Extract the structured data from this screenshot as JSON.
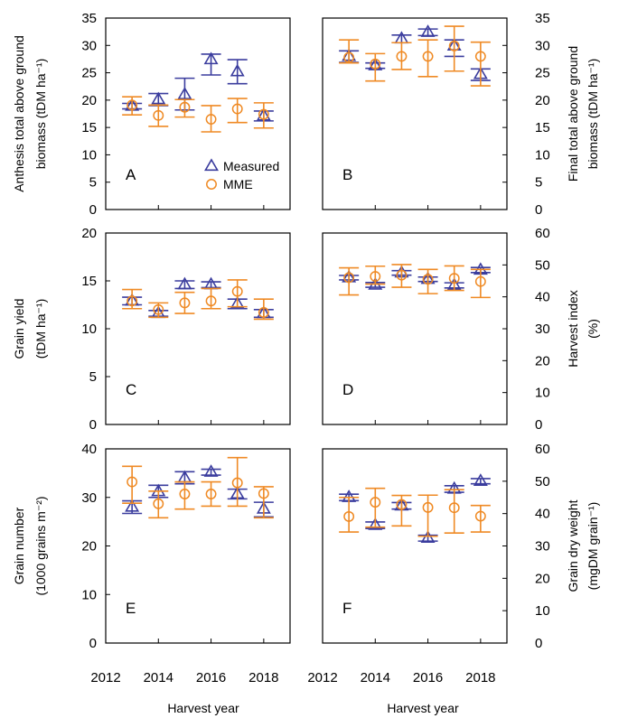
{
  "colors": {
    "measured": "#3b3d9e",
    "mme": "#ef8a24",
    "frame": "#000000"
  },
  "legend": {
    "measured": "Measured",
    "mme": "MME"
  },
  "x_axis": {
    "label": "Harvest year",
    "ticks": [
      2012,
      2014,
      2016,
      2018
    ],
    "tick_labels": [
      "2012",
      "2014",
      "2016",
      "2018"
    ]
  },
  "chart_data": [
    {
      "type": "scatter",
      "panel": "A",
      "ylabel_lines": [
        "Anthesis total above ground",
        "biomass (tDM ha⁻¹)"
      ],
      "ylabel_side": "left",
      "ylim": [
        0,
        35
      ],
      "yticks": [
        0,
        5,
        10,
        15,
        20,
        25,
        30,
        35
      ],
      "legend_shown": true,
      "legend_position": "bottom-right",
      "x": [
        2013,
        2014,
        2015,
        2016,
        2017,
        2018
      ],
      "series": [
        {
          "name": "Measured",
          "marker": "triangle",
          "values": [
            18.9,
            20.1,
            21.0,
            27.4,
            25.2,
            17.1
          ],
          "lower": [
            18.4,
            19.0,
            18.2,
            24.6,
            23.0,
            16.2
          ],
          "upper": [
            19.4,
            21.2,
            24.0,
            28.4,
            27.4,
            18.0
          ]
        },
        {
          "name": "MME",
          "marker": "circle",
          "values": [
            19.1,
            17.2,
            18.7,
            16.5,
            18.4,
            17.4
          ],
          "lower": [
            17.3,
            15.2,
            16.9,
            14.2,
            15.9,
            14.9
          ],
          "upper": [
            20.6,
            19.1,
            20.1,
            19.0,
            20.3,
            19.5
          ]
        }
      ]
    },
    {
      "type": "scatter",
      "panel": "B",
      "ylabel_lines": [
        "Final total above ground",
        "biomass (tDM ha⁻¹)"
      ],
      "ylabel_side": "right",
      "ylim": [
        0,
        35
      ],
      "yticks": [
        0,
        5,
        10,
        15,
        20,
        25,
        30,
        35
      ],
      "legend_shown": false,
      "x": [
        2013,
        2014,
        2015,
        2016,
        2017,
        2018
      ],
      "series": [
        {
          "name": "Measured",
          "marker": "triangle",
          "values": [
            28.0,
            26.3,
            31.2,
            32.4,
            29.9,
            24.7
          ],
          "lower": [
            26.9,
            25.8,
            30.5,
            31.8,
            28.0,
            23.6
          ],
          "upper": [
            29.0,
            26.8,
            31.9,
            33.0,
            31.0,
            25.7
          ]
        },
        {
          "name": "MME",
          "marker": "circle",
          "values": [
            27.8,
            26.6,
            28.0,
            28.0,
            29.9,
            28.0
          ],
          "lower": [
            26.8,
            23.5,
            25.6,
            24.3,
            25.3,
            22.6
          ],
          "upper": [
            31.0,
            28.5,
            30.5,
            31.0,
            33.5,
            30.6
          ]
        }
      ]
    },
    {
      "type": "scatter",
      "panel": "C",
      "ylabel_lines": [
        "Grain yield",
        "(tDM ha⁻¹)"
      ],
      "ylabel_side": "left",
      "ylim": [
        0,
        20
      ],
      "yticks": [
        0,
        5,
        10,
        15,
        20
      ],
      "legend_shown": false,
      "x": [
        2013,
        2014,
        2015,
        2016,
        2017,
        2018
      ],
      "series": [
        {
          "name": "Measured",
          "marker": "triangle",
          "values": [
            12.9,
            11.6,
            14.6,
            14.6,
            12.6,
            11.6
          ],
          "lower": [
            12.5,
            11.3,
            14.2,
            14.3,
            12.1,
            11.2
          ],
          "upper": [
            13.3,
            11.9,
            15.0,
            14.9,
            13.1,
            12.0
          ]
        },
        {
          "name": "MME",
          "marker": "circle",
          "values": [
            12.9,
            12.0,
            12.7,
            12.9,
            13.9,
            11.7
          ],
          "lower": [
            12.1,
            11.2,
            11.6,
            12.1,
            12.3,
            11.0
          ],
          "upper": [
            14.1,
            12.7,
            13.8,
            14.2,
            15.1,
            13.1
          ]
        }
      ]
    },
    {
      "type": "scatter",
      "panel": "D",
      "ylabel_lines": [
        "Harvest index",
        "(%)"
      ],
      "ylabel_side": "right",
      "ylim": [
        0,
        60
      ],
      "yticks": [
        0,
        10,
        20,
        30,
        40,
        50,
        60
      ],
      "legend_shown": false,
      "x": [
        2013,
        2014,
        2015,
        2016,
        2017,
        2018
      ],
      "series": [
        {
          "name": "Measured",
          "marker": "triangle",
          "values": [
            46.0,
            43.7,
            47.5,
            45.5,
            43.6,
            48.4
          ],
          "lower": [
            45.3,
            43.0,
            46.8,
            44.8,
            42.8,
            47.6
          ],
          "upper": [
            46.7,
            44.5,
            48.2,
            46.2,
            44.4,
            49.2
          ]
        },
        {
          "name": "MME",
          "marker": "circle",
          "values": [
            46.0,
            46.4,
            46.8,
            45.5,
            45.8,
            44.8
          ],
          "lower": [
            40.6,
            44.0,
            43.0,
            41.0,
            42.0,
            39.8
          ],
          "upper": [
            49.1,
            49.6,
            50.1,
            48.6,
            49.7,
            48.6
          ]
        }
      ]
    },
    {
      "type": "scatter",
      "panel": "E",
      "ylabel_lines": [
        "Grain number",
        "(1000 grains m⁻²)"
      ],
      "ylabel_side": "left",
      "ylim": [
        0,
        40
      ],
      "yticks": [
        0,
        10,
        20,
        30,
        40
      ],
      "legend_shown": false,
      "x": [
        2013,
        2014,
        2015,
        2016,
        2017,
        2018
      ],
      "series": [
        {
          "name": "Measured",
          "marker": "triangle",
          "values": [
            28.0,
            31.2,
            34.0,
            35.2,
            30.7,
            27.6
          ],
          "lower": [
            26.7,
            30.0,
            32.8,
            34.6,
            29.7,
            26.0
          ],
          "upper": [
            29.3,
            32.5,
            35.3,
            35.8,
            31.7,
            29.0
          ]
        },
        {
          "name": "MME",
          "marker": "circle",
          "values": [
            33.2,
            28.7,
            30.7,
            30.7,
            33.0,
            30.8
          ],
          "lower": [
            28.8,
            25.8,
            27.6,
            28.2,
            28.2,
            25.8
          ],
          "upper": [
            36.4,
            31.3,
            33.2,
            33.2,
            38.2,
            32.2
          ]
        }
      ]
    },
    {
      "type": "scatter",
      "panel": "F",
      "ylabel_lines": [
        "Grain dry weight",
        "(mgDM grain⁻¹)"
      ],
      "ylabel_side": "right",
      "ylim": [
        0,
        60
      ],
      "yticks": [
        0,
        10,
        20,
        30,
        40,
        50,
        60
      ],
      "legend_shown": false,
      "x": [
        2013,
        2014,
        2015,
        2016,
        2017,
        2018
      ],
      "series": [
        {
          "name": "Measured",
          "marker": "triangle",
          "values": [
            45.0,
            36.4,
            42.4,
            32.4,
            47.6,
            50.0
          ],
          "lower": [
            44.0,
            35.4,
            41.4,
            31.5,
            46.6,
            49.2
          ],
          "upper": [
            46.0,
            37.4,
            43.4,
            33.3,
            48.6,
            50.8
          ]
        },
        {
          "name": "MME",
          "marker": "circle",
          "values": [
            39.1,
            43.5,
            42.8,
            41.9,
            41.8,
            39.2
          ],
          "lower": [
            34.3,
            35.8,
            36.2,
            33.0,
            34.0,
            34.3
          ],
          "upper": [
            45.0,
            47.8,
            45.6,
            45.7,
            47.4,
            42.5
          ]
        }
      ]
    }
  ]
}
